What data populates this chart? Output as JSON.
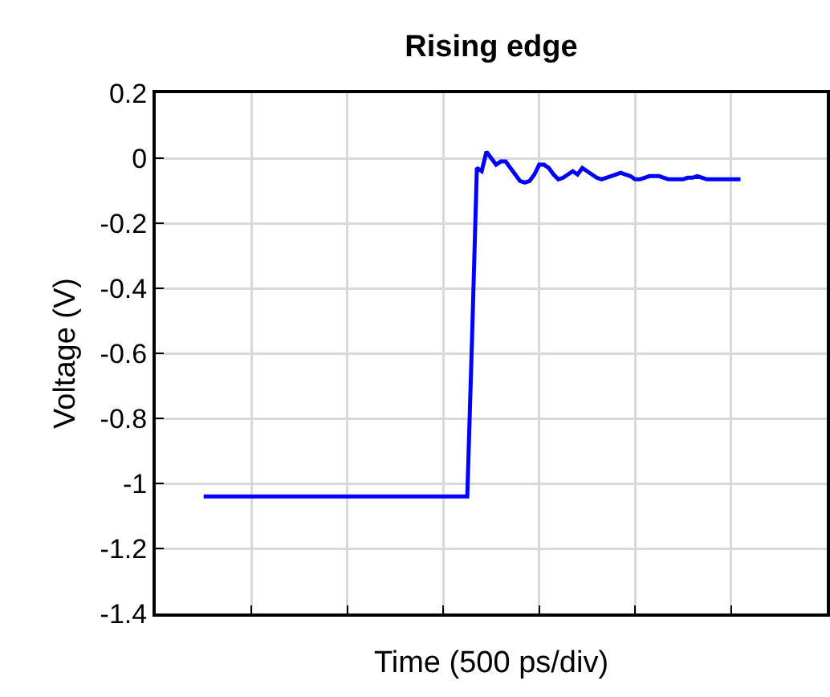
{
  "chart_data": {
    "type": "line",
    "title": "Rising edge",
    "xlabel": "Time (500 ps/div)",
    "ylabel": "Voltage (V)",
    "categories": [
      null,
      null,
      null,
      null,
      null,
      null,
      null,
      null,
      null,
      null,
      null,
      null,
      null,
      null,
      null,
      null,
      null,
      null,
      null,
      null,
      null,
      null,
      null,
      null,
      null,
      null,
      null,
      null,
      null,
      null,
      null,
      null,
      null,
      null,
      null,
      null,
      null,
      null,
      null,
      null,
      null,
      null,
      null,
      null,
      null,
      null,
      null,
      null,
      null,
      null,
      null,
      null,
      null,
      null,
      null,
      null,
      null,
      null,
      null,
      null,
      null,
      null,
      null,
      null,
      null,
      null,
      null,
      null,
      null,
      null,
      null,
      null,
      null,
      null,
      null,
      null,
      null,
      null,
      null,
      null,
      null,
      null,
      null,
      null,
      null,
      null,
      null,
      null,
      null,
      null,
      null,
      null,
      null,
      null,
      null,
      null,
      null,
      null,
      null,
      null,
      null,
      null,
      null,
      null,
      null,
      null,
      null,
      null,
      null,
      null,
      null,
      null,
      null
    ],
    "series": [
      {
        "color": "#0000ff",
        "values": [
          -1.04,
          -1.04,
          -1.04,
          -1.04,
          -1.04,
          -1.04,
          -1.04,
          -1.04,
          -1.04,
          -1.04,
          -1.04,
          -1.04,
          -1.04,
          -1.04,
          -1.04,
          -1.04,
          -1.04,
          -1.04,
          -1.04,
          -1.04,
          -1.04,
          -1.04,
          -1.04,
          -1.04,
          -1.04,
          -1.04,
          -1.04,
          -1.04,
          -1.04,
          -1.04,
          -1.04,
          -1.04,
          -1.04,
          -1.04,
          -1.04,
          -1.04,
          -1.04,
          -1.04,
          -1.04,
          -1.04,
          -1.04,
          -1.04,
          -1.04,
          -1.04,
          -1.04,
          -1.04,
          -1.04,
          -1.04,
          -1.04,
          -1.04,
          -1.04,
          -1.04,
          -1.04,
          -1.04,
          -1.04,
          -1.04,
          -0.55,
          -0.03,
          -0.04,
          0.02,
          0,
          -0.02,
          -0.01,
          -0.01,
          -0.03,
          -0.05,
          -0.07,
          -0.075,
          -0.07,
          -0.05,
          -0.02,
          -0.02,
          -0.03,
          -0.05,
          -0.065,
          -0.06,
          -0.05,
          -0.04,
          -0.05,
          -0.03,
          -0.04,
          -0.05,
          -0.06,
          -0.065,
          -0.06,
          -0.055,
          -0.05,
          -0.045,
          -0.05,
          -0.055,
          -0.065,
          -0.065,
          -0.06,
          -0.055,
          -0.055,
          -0.055,
          -0.06,
          -0.065,
          -0.065,
          -0.065,
          -0.065,
          -0.06,
          -0.06,
          -0.055,
          -0.06,
          -0.065,
          -0.065,
          -0.065,
          -0.065,
          -0.065,
          -0.065,
          -0.065,
          -0.065
        ]
      }
    ],
    "ylim": [
      -1.4,
      0.2
    ],
    "yticks": [
      0.2,
      0,
      -0.2,
      -0.4,
      -0.6,
      -0.8,
      -1,
      -1.2,
      -1.4
    ],
    "grid": true,
    "tick_labels": "y",
    "line_style": "solid"
  }
}
